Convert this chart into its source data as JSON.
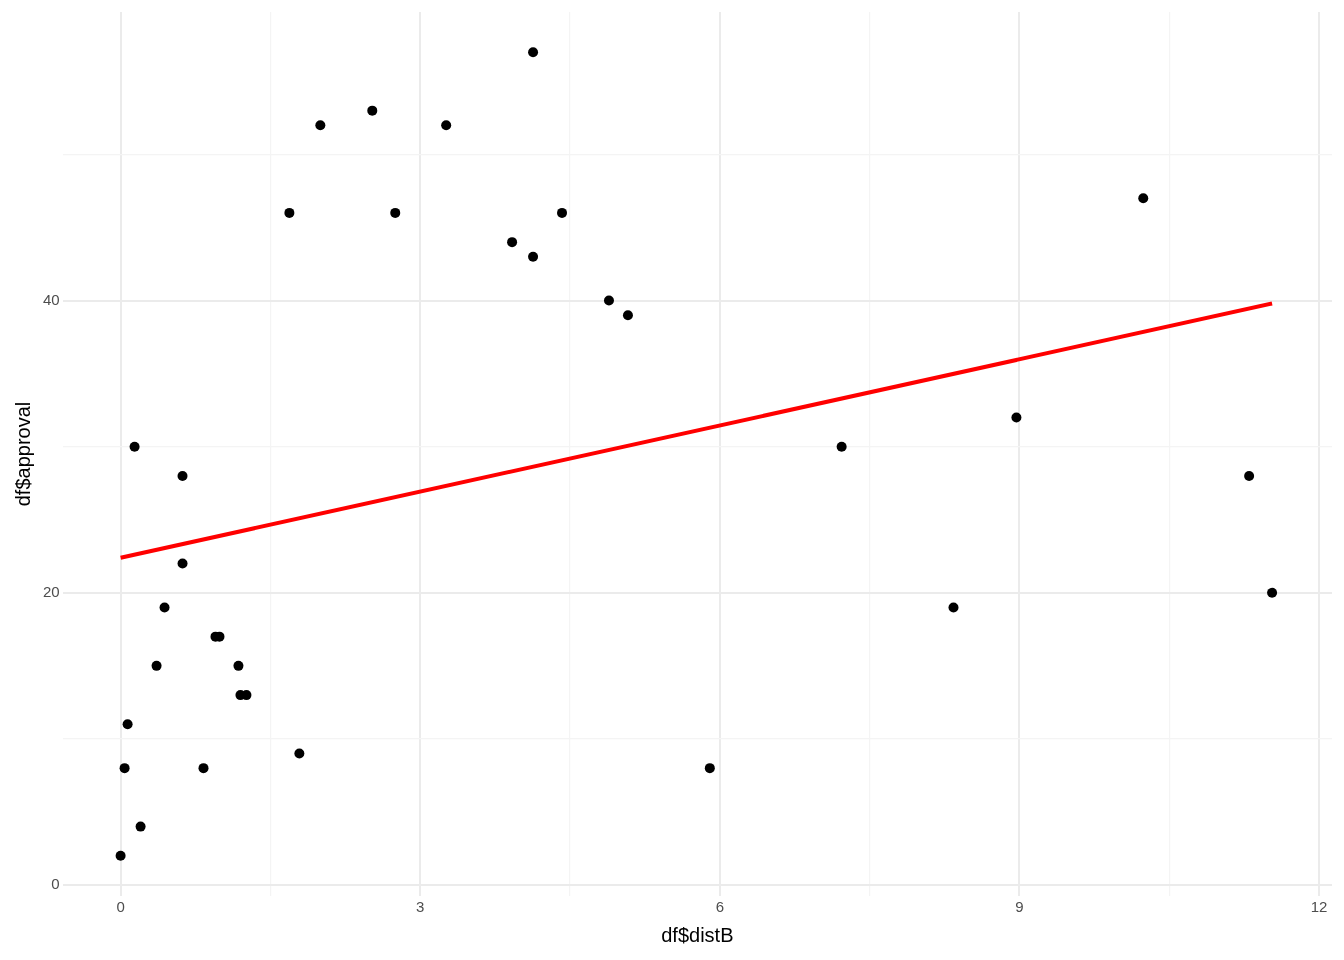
{
  "chart_data": {
    "type": "scatter",
    "xlabel": "df$distB",
    "ylabel": "df$approval",
    "xlim": [
      -0.58,
      12.13
    ],
    "ylim": [
      -0.75,
      59.75
    ],
    "xticks": [
      0,
      {
        "value": 1.5,
        "label": null
      },
      3,
      {
        "value": 4.5,
        "label": null
      },
      6,
      {
        "value": 7.5,
        "label": null
      },
      9,
      {
        "value": 10.5,
        "label": null
      },
      12
    ],
    "yticks": [
      0,
      {
        "value": 10,
        "label": null
      },
      20,
      {
        "value": 30,
        "label": null
      },
      40,
      {
        "value": 50,
        "label": null
      }
    ],
    "grid": true,
    "legend": false,
    "marker": "circle",
    "series": [
      {
        "type": "scatter",
        "color": "#000000",
        "x": [
          0,
          0.04,
          0.07,
          0.14,
          0.2,
          0.36,
          0.44,
          0.62,
          0.62,
          0.83,
          0.95,
          0.99,
          1.18,
          1.2,
          1.26,
          1.69,
          1.79,
          2.0,
          2.52,
          2.75,
          3.26,
          3.92,
          4.13,
          4.13,
          4.42,
          4.89,
          5.08,
          5.9,
          7.22,
          8.34,
          8.97,
          10.24,
          11.3,
          11.53
        ],
        "values": [
          2,
          8,
          11,
          30,
          4,
          15,
          19,
          28,
          22,
          8,
          17,
          17,
          15,
          13,
          13,
          46,
          9,
          52,
          53,
          46,
          52,
          44,
          57,
          43,
          46,
          40,
          39,
          8,
          30,
          19,
          32,
          47,
          28,
          20
        ]
      },
      {
        "type": "line",
        "color": "#ff0000",
        "x": [
          0,
          11.53
        ],
        "values": [
          22.4,
          39.8
        ],
        "marker": "none",
        "line_style": "solid"
      }
    ]
  }
}
